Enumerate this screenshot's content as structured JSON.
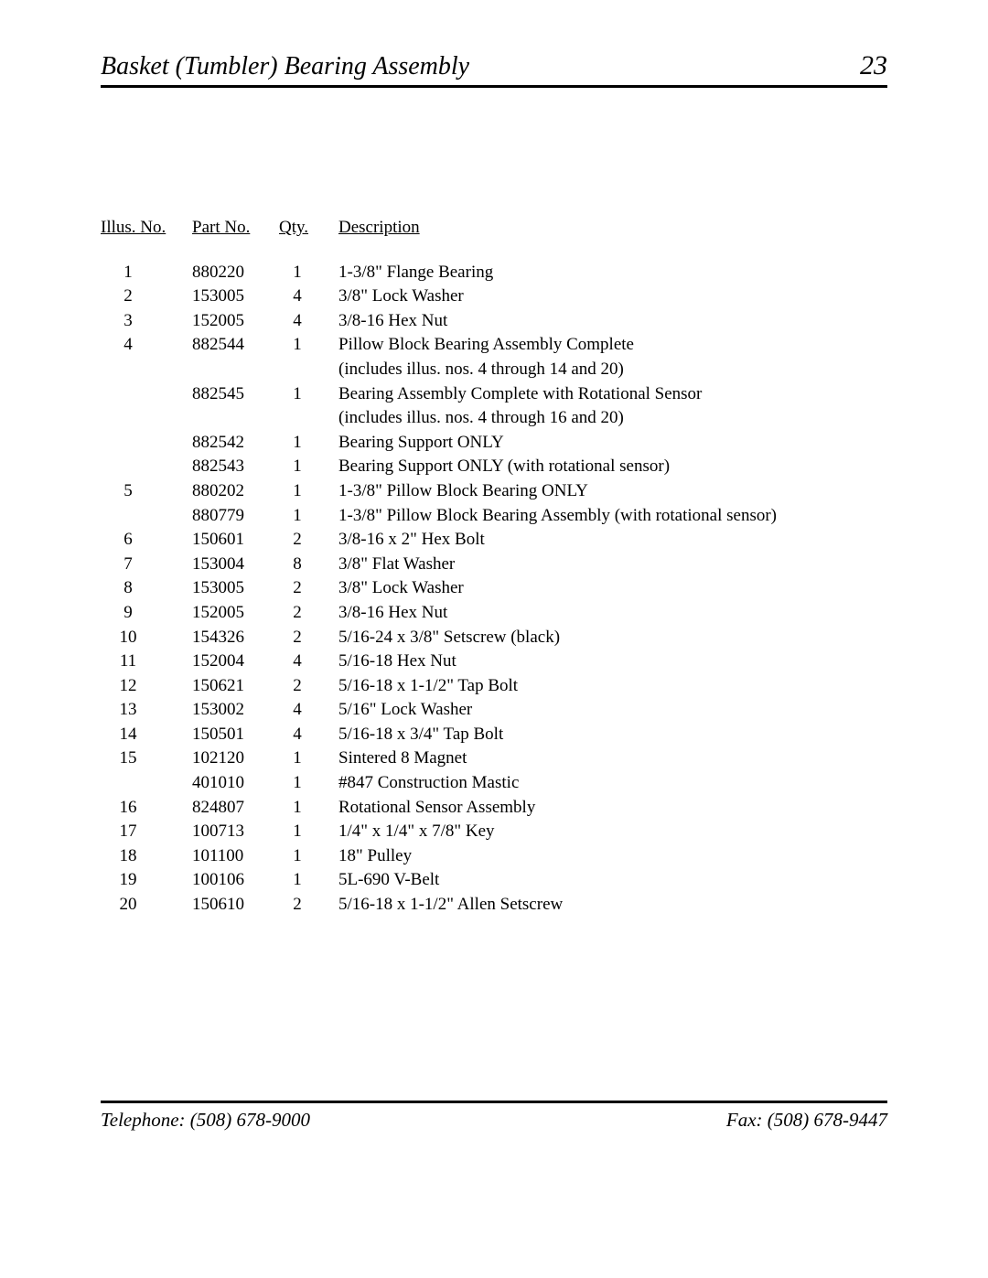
{
  "header": {
    "title": "Basket (Tumbler) Bearing Assembly",
    "page_number": "23"
  },
  "columns": {
    "illus": "Illus. No.",
    "part": "Part No.",
    "qty": "Qty.",
    "desc": "Description"
  },
  "rows": [
    {
      "illus": "1",
      "part": "880220",
      "qty": "1",
      "desc": "1-3/8\" Flange Bearing"
    },
    {
      "illus": "2",
      "part": "153005",
      "qty": "4",
      "desc": "3/8\" Lock Washer"
    },
    {
      "illus": "3",
      "part": "152005",
      "qty": "4",
      "desc": "3/8-16 Hex Nut"
    },
    {
      "illus": "4",
      "part": "882544",
      "qty": "1",
      "desc": "Pillow Block Bearing Assembly Complete"
    },
    {
      "illus": "",
      "part": "",
      "qty": "",
      "desc": "(includes illus. nos. 4 through 14 and 20)"
    },
    {
      "illus": "",
      "part": "882545",
      "qty": "1",
      "desc": "Bearing Assembly Complete with Rotational Sensor"
    },
    {
      "illus": "",
      "part": "",
      "qty": "",
      "desc": "(includes illus. nos. 4 through 16 and 20)"
    },
    {
      "illus": "",
      "part": "882542",
      "qty": "1",
      "desc": "Bearing Support ONLY"
    },
    {
      "illus": "",
      "part": "882543",
      "qty": "1",
      "desc": "Bearing Support ONLY (with rotational sensor)"
    },
    {
      "illus": "5",
      "part": "880202",
      "qty": "1",
      "desc": "1-3/8\" Pillow Block Bearing ONLY"
    },
    {
      "illus": "",
      "part": "880779",
      "qty": "1",
      "desc": "1-3/8\" Pillow Block Bearing Assembly (with rotational sensor)"
    },
    {
      "illus": "6",
      "part": "150601",
      "qty": "2",
      "desc": "3/8-16 x 2\" Hex Bolt"
    },
    {
      "illus": "7",
      "part": "153004",
      "qty": "8",
      "desc": "3/8\" Flat Washer"
    },
    {
      "illus": "8",
      "part": "153005",
      "qty": "2",
      "desc": "3/8\" Lock Washer"
    },
    {
      "illus": "9",
      "part": "152005",
      "qty": "2",
      "desc": "3/8-16 Hex Nut"
    },
    {
      "illus": "10",
      "part": "154326",
      "qty": "2",
      "desc": "5/16-24 x 3/8\" Setscrew (black)"
    },
    {
      "illus": "11",
      "part": "152004",
      "qty": "4",
      "desc": "5/16-18 Hex Nut"
    },
    {
      "illus": "12",
      "part": "150621",
      "qty": "2",
      "desc": "5/16-18 x 1-1/2\" Tap Bolt"
    },
    {
      "illus": "13",
      "part": "153002",
      "qty": "4",
      "desc": "5/16\" Lock Washer"
    },
    {
      "illus": "14",
      "part": "150501",
      "qty": "4",
      "desc": "5/16-18 x 3/4\" Tap Bolt"
    },
    {
      "illus": "15",
      "part": "102120",
      "qty": "1",
      "desc": "Sintered 8 Magnet"
    },
    {
      "illus": "",
      "part": "401010",
      "qty": "1",
      "desc": "#847 Construction Mastic"
    },
    {
      "illus": "16",
      "part": "824807",
      "qty": "1",
      "desc": "Rotational Sensor Assembly"
    },
    {
      "illus": "17",
      "part": "100713",
      "qty": "1",
      "desc": "1/4\" x 1/4\" x 7/8\" Key"
    },
    {
      "illus": "18",
      "part": "101100",
      "qty": "1",
      "desc": "18\" Pulley"
    },
    {
      "illus": "19",
      "part": "100106",
      "qty": "1",
      "desc": "5L-690 V-Belt"
    },
    {
      "illus": "20",
      "part": "150610",
      "qty": "2",
      "desc": "5/16-18 x 1-1/2\" Allen Setscrew"
    }
  ],
  "footer": {
    "telephone": "Telephone: (508) 678-9000",
    "fax": "Fax: (508) 678-9447"
  }
}
